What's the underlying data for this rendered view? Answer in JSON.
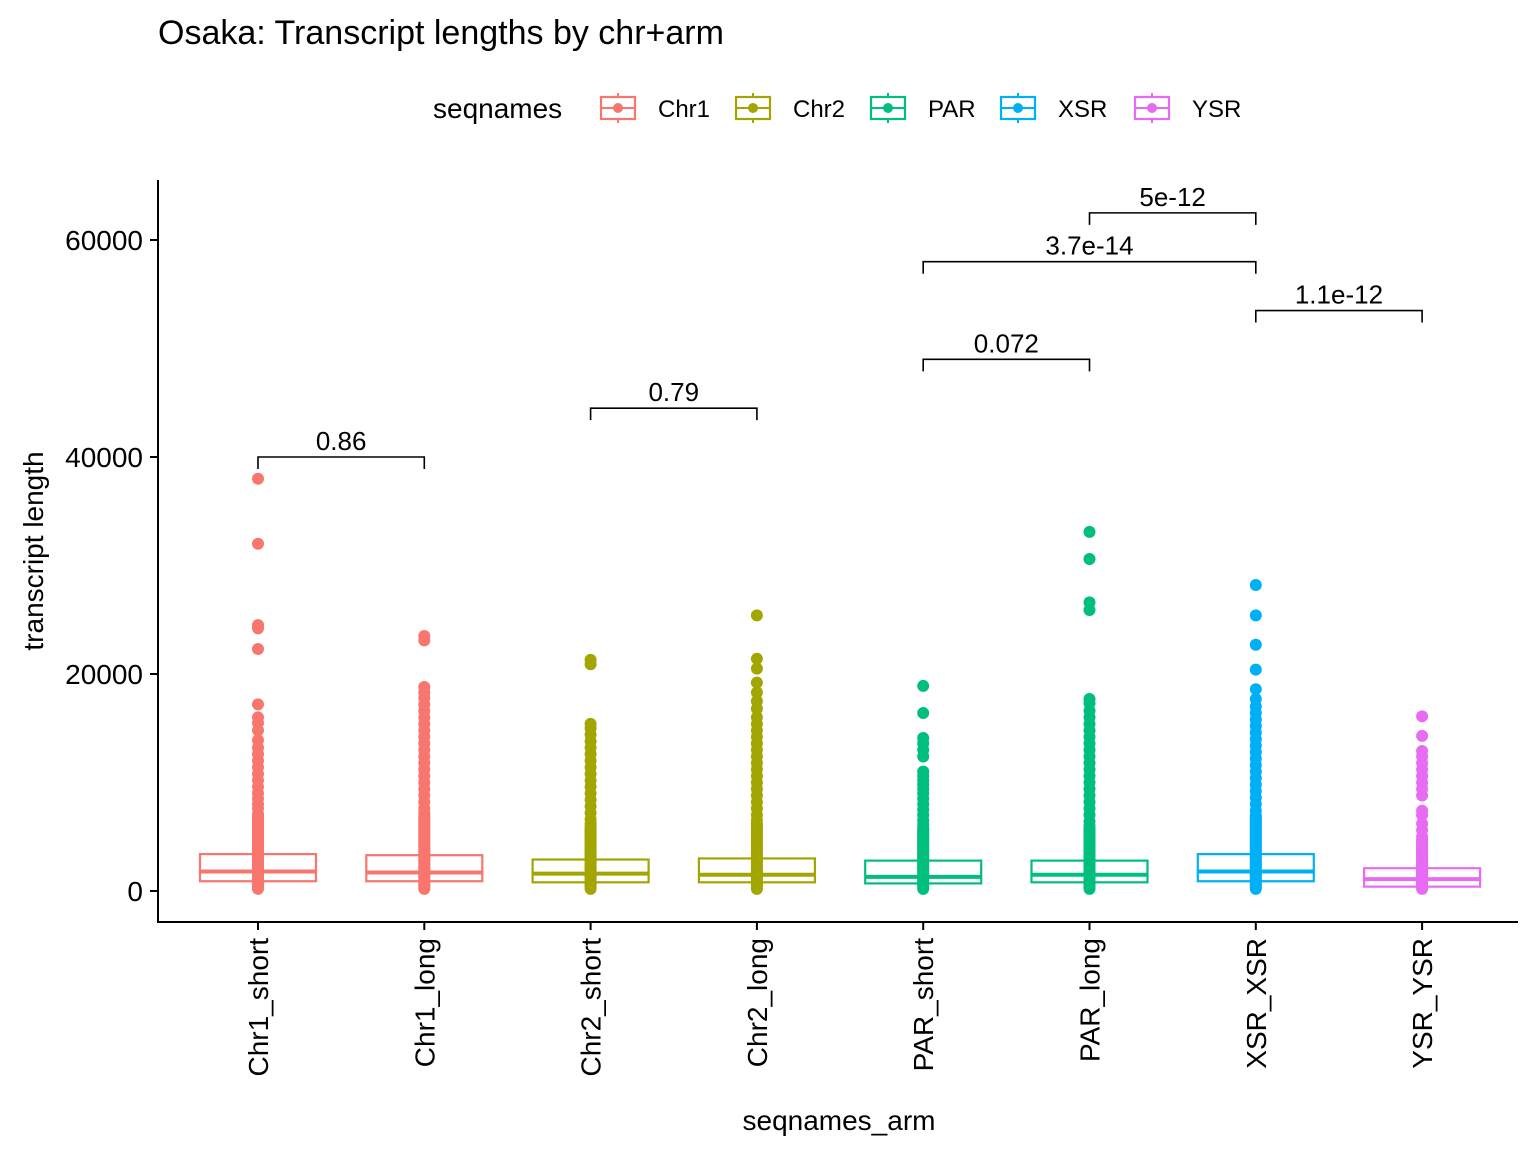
{
  "chart_data": {
    "type": "box",
    "title": "Osaka: Transcript lengths by chr+arm",
    "xlabel": "seqnames_arm",
    "ylabel": "transcript length",
    "ylim": [
      -3000,
      65500
    ],
    "yticks": [
      0,
      20000,
      40000,
      60000
    ],
    "ytick_labels": [
      "0",
      "20000",
      "40000",
      "60000"
    ],
    "grid": false,
    "legend": {
      "title": "seqnames",
      "position": "top",
      "entries": [
        {
          "name": "Chr1",
          "color": "#F8766D"
        },
        {
          "name": "Chr2",
          "color": "#A3A500"
        },
        {
          "name": "PAR",
          "color": "#00BF7D"
        },
        {
          "name": "XSR",
          "color": "#00B0F6"
        },
        {
          "name": "YSR",
          "color": "#E76BF3"
        }
      ]
    },
    "categories": [
      "Chr1_short",
      "Chr1_long",
      "Chr2_short",
      "Chr2_long",
      "PAR_short",
      "PAR_long",
      "XSR_XSR",
      "YSR_YSR"
    ],
    "boxes": [
      {
        "category": "Chr1_short",
        "group": "Chr1",
        "q1": 900,
        "median": 1800,
        "q3": 3400,
        "whisker_low": 100,
        "whisker_high": 7200,
        "outliers": [
          38000,
          32000,
          24500,
          24200,
          22300,
          17200,
          16000,
          15500,
          14800,
          13900,
          13200,
          12600,
          12000,
          11400,
          10800,
          10200,
          9600,
          9000,
          8500,
          8000,
          7600
        ]
      },
      {
        "category": "Chr1_long",
        "group": "Chr1",
        "q1": 900,
        "median": 1700,
        "q3": 3300,
        "whisker_low": 100,
        "whisker_high": 7000,
        "outliers": [
          23500,
          23100,
          18800,
          18300,
          17800,
          17200,
          16600,
          16000,
          15400,
          14800,
          14200,
          13600,
          13000,
          12400,
          11800,
          11200,
          10600,
          10000,
          9400,
          8800,
          8200,
          7600,
          7200
        ]
      },
      {
        "category": "Chr2_short",
        "group": "Chr2",
        "q1": 800,
        "median": 1600,
        "q3": 2900,
        "whisker_low": 100,
        "whisker_high": 6000,
        "outliers": [
          21300,
          20900,
          15400,
          15000,
          14400,
          13800,
          13200,
          12600,
          12000,
          11400,
          10800,
          10200,
          9600,
          9000,
          8400,
          7800,
          7200,
          6600,
          6200
        ]
      },
      {
        "category": "Chr2_long",
        "group": "Chr2",
        "q1": 800,
        "median": 1500,
        "q3": 3000,
        "whisker_low": 100,
        "whisker_high": 6200,
        "outliers": [
          25400,
          21400,
          20500,
          19200,
          18300,
          17500,
          16800,
          16000,
          15400,
          14800,
          14200,
          13600,
          13000,
          12400,
          11800,
          11200,
          10600,
          10000,
          9400,
          8800,
          8200,
          7600,
          7000,
          6500
        ]
      },
      {
        "category": "PAR_short",
        "group": "PAR",
        "q1": 700,
        "median": 1300,
        "q3": 2800,
        "whisker_low": 100,
        "whisker_high": 5800,
        "outliers": [
          18900,
          16400,
          14100,
          13600,
          13000,
          12400,
          11000,
          10600,
          10200,
          9800,
          9400,
          9000,
          8500,
          8000,
          7500,
          7000,
          6500,
          6100
        ]
      },
      {
        "category": "PAR_long",
        "group": "PAR",
        "q1": 800,
        "median": 1500,
        "q3": 2800,
        "whisker_low": 100,
        "whisker_high": 5800,
        "outliers": [
          33100,
          30600,
          26600,
          25900,
          17700,
          17300,
          16600,
          16000,
          15400,
          14800,
          14200,
          13600,
          13000,
          12400,
          11800,
          11200,
          10600,
          10000,
          9400,
          8800,
          8200,
          7600,
          7000,
          6400,
          6000
        ]
      },
      {
        "category": "XSR_XSR",
        "group": "XSR",
        "q1": 900,
        "median": 1800,
        "q3": 3400,
        "whisker_low": 100,
        "whisker_high": 7000,
        "outliers": [
          28200,
          25400,
          22700,
          20400,
          18600,
          17700,
          17000,
          16400,
          15800,
          15200,
          14600,
          14000,
          13400,
          12800,
          12200,
          11600,
          11000,
          10400,
          9800,
          9200,
          8600,
          8000,
          7400
        ]
      },
      {
        "category": "YSR_YSR",
        "group": "YSR",
        "q1": 400,
        "median": 1100,
        "q3": 2100,
        "whisker_low": 100,
        "whisker_high": 4500,
        "outliers": [
          16100,
          14300,
          12900,
          12400,
          11800,
          11200,
          10600,
          10000,
          9400,
          8800,
          7400,
          7000,
          6200,
          5600,
          5000,
          4700
        ]
      }
    ],
    "comparisons": [
      {
        "from": "Chr1_short",
        "to": "Chr1_long",
        "label": "0.86",
        "y": 40000
      },
      {
        "from": "Chr2_short",
        "to": "Chr2_long",
        "label": "0.79",
        "y": 44500
      },
      {
        "from": "PAR_short",
        "to": "PAR_long",
        "label": "0.072",
        "y": 49000
      },
      {
        "from": "XSR_XSR",
        "to": "YSR_YSR",
        "label": "1.1e-12",
        "y": 53500
      },
      {
        "from": "PAR_short",
        "to": "XSR_XSR",
        "label": "3.7e-14",
        "y": 58000
      },
      {
        "from": "PAR_long",
        "to": "XSR_XSR",
        "label": "5e-12",
        "y": 62500
      }
    ]
  }
}
